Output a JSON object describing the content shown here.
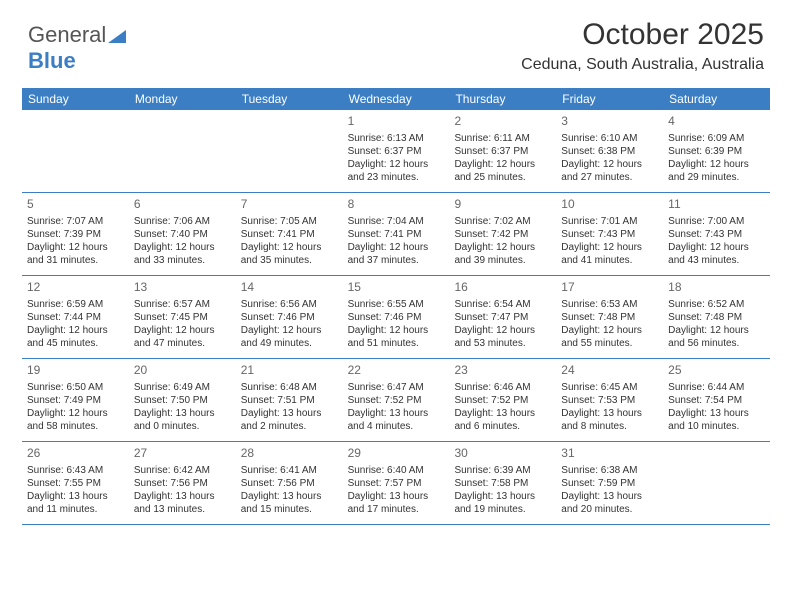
{
  "logo": {
    "text1": "General",
    "text2": "Blue"
  },
  "title": "October 2025",
  "location": "Ceduna, South Australia, Australia",
  "colors": {
    "accent": "#3b7ec4",
    "background": "#ffffff",
    "text": "#333333",
    "daynum": "#666666",
    "header_text": "#ffffff"
  },
  "day_names": [
    "Sunday",
    "Monday",
    "Tuesday",
    "Wednesday",
    "Thursday",
    "Friday",
    "Saturday"
  ],
  "weeks": [
    [
      null,
      null,
      null,
      {
        "n": "1",
        "sr": "Sunrise: 6:13 AM",
        "ss": "Sunset: 6:37 PM",
        "dl": "Daylight: 12 hours and 23 minutes."
      },
      {
        "n": "2",
        "sr": "Sunrise: 6:11 AM",
        "ss": "Sunset: 6:37 PM",
        "dl": "Daylight: 12 hours and 25 minutes."
      },
      {
        "n": "3",
        "sr": "Sunrise: 6:10 AM",
        "ss": "Sunset: 6:38 PM",
        "dl": "Daylight: 12 hours and 27 minutes."
      },
      {
        "n": "4",
        "sr": "Sunrise: 6:09 AM",
        "ss": "Sunset: 6:39 PM",
        "dl": "Daylight: 12 hours and 29 minutes."
      }
    ],
    [
      {
        "n": "5",
        "sr": "Sunrise: 7:07 AM",
        "ss": "Sunset: 7:39 PM",
        "dl": "Daylight: 12 hours and 31 minutes."
      },
      {
        "n": "6",
        "sr": "Sunrise: 7:06 AM",
        "ss": "Sunset: 7:40 PM",
        "dl": "Daylight: 12 hours and 33 minutes."
      },
      {
        "n": "7",
        "sr": "Sunrise: 7:05 AM",
        "ss": "Sunset: 7:41 PM",
        "dl": "Daylight: 12 hours and 35 minutes."
      },
      {
        "n": "8",
        "sr": "Sunrise: 7:04 AM",
        "ss": "Sunset: 7:41 PM",
        "dl": "Daylight: 12 hours and 37 minutes."
      },
      {
        "n": "9",
        "sr": "Sunrise: 7:02 AM",
        "ss": "Sunset: 7:42 PM",
        "dl": "Daylight: 12 hours and 39 minutes."
      },
      {
        "n": "10",
        "sr": "Sunrise: 7:01 AM",
        "ss": "Sunset: 7:43 PM",
        "dl": "Daylight: 12 hours and 41 minutes."
      },
      {
        "n": "11",
        "sr": "Sunrise: 7:00 AM",
        "ss": "Sunset: 7:43 PM",
        "dl": "Daylight: 12 hours and 43 minutes."
      }
    ],
    [
      {
        "n": "12",
        "sr": "Sunrise: 6:59 AM",
        "ss": "Sunset: 7:44 PM",
        "dl": "Daylight: 12 hours and 45 minutes."
      },
      {
        "n": "13",
        "sr": "Sunrise: 6:57 AM",
        "ss": "Sunset: 7:45 PM",
        "dl": "Daylight: 12 hours and 47 minutes."
      },
      {
        "n": "14",
        "sr": "Sunrise: 6:56 AM",
        "ss": "Sunset: 7:46 PM",
        "dl": "Daylight: 12 hours and 49 minutes."
      },
      {
        "n": "15",
        "sr": "Sunrise: 6:55 AM",
        "ss": "Sunset: 7:46 PM",
        "dl": "Daylight: 12 hours and 51 minutes."
      },
      {
        "n": "16",
        "sr": "Sunrise: 6:54 AM",
        "ss": "Sunset: 7:47 PM",
        "dl": "Daylight: 12 hours and 53 minutes."
      },
      {
        "n": "17",
        "sr": "Sunrise: 6:53 AM",
        "ss": "Sunset: 7:48 PM",
        "dl": "Daylight: 12 hours and 55 minutes."
      },
      {
        "n": "18",
        "sr": "Sunrise: 6:52 AM",
        "ss": "Sunset: 7:48 PM",
        "dl": "Daylight: 12 hours and 56 minutes."
      }
    ],
    [
      {
        "n": "19",
        "sr": "Sunrise: 6:50 AM",
        "ss": "Sunset: 7:49 PM",
        "dl": "Daylight: 12 hours and 58 minutes."
      },
      {
        "n": "20",
        "sr": "Sunrise: 6:49 AM",
        "ss": "Sunset: 7:50 PM",
        "dl": "Daylight: 13 hours and 0 minutes."
      },
      {
        "n": "21",
        "sr": "Sunrise: 6:48 AM",
        "ss": "Sunset: 7:51 PM",
        "dl": "Daylight: 13 hours and 2 minutes."
      },
      {
        "n": "22",
        "sr": "Sunrise: 6:47 AM",
        "ss": "Sunset: 7:52 PM",
        "dl": "Daylight: 13 hours and 4 minutes."
      },
      {
        "n": "23",
        "sr": "Sunrise: 6:46 AM",
        "ss": "Sunset: 7:52 PM",
        "dl": "Daylight: 13 hours and 6 minutes."
      },
      {
        "n": "24",
        "sr": "Sunrise: 6:45 AM",
        "ss": "Sunset: 7:53 PM",
        "dl": "Daylight: 13 hours and 8 minutes."
      },
      {
        "n": "25",
        "sr": "Sunrise: 6:44 AM",
        "ss": "Sunset: 7:54 PM",
        "dl": "Daylight: 13 hours and 10 minutes."
      }
    ],
    [
      {
        "n": "26",
        "sr": "Sunrise: 6:43 AM",
        "ss": "Sunset: 7:55 PM",
        "dl": "Daylight: 13 hours and 11 minutes."
      },
      {
        "n": "27",
        "sr": "Sunrise: 6:42 AM",
        "ss": "Sunset: 7:56 PM",
        "dl": "Daylight: 13 hours and 13 minutes."
      },
      {
        "n": "28",
        "sr": "Sunrise: 6:41 AM",
        "ss": "Sunset: 7:56 PM",
        "dl": "Daylight: 13 hours and 15 minutes."
      },
      {
        "n": "29",
        "sr": "Sunrise: 6:40 AM",
        "ss": "Sunset: 7:57 PM",
        "dl": "Daylight: 13 hours and 17 minutes."
      },
      {
        "n": "30",
        "sr": "Sunrise: 6:39 AM",
        "ss": "Sunset: 7:58 PM",
        "dl": "Daylight: 13 hours and 19 minutes."
      },
      {
        "n": "31",
        "sr": "Sunrise: 6:38 AM",
        "ss": "Sunset: 7:59 PM",
        "dl": "Daylight: 13 hours and 20 minutes."
      },
      null
    ]
  ]
}
